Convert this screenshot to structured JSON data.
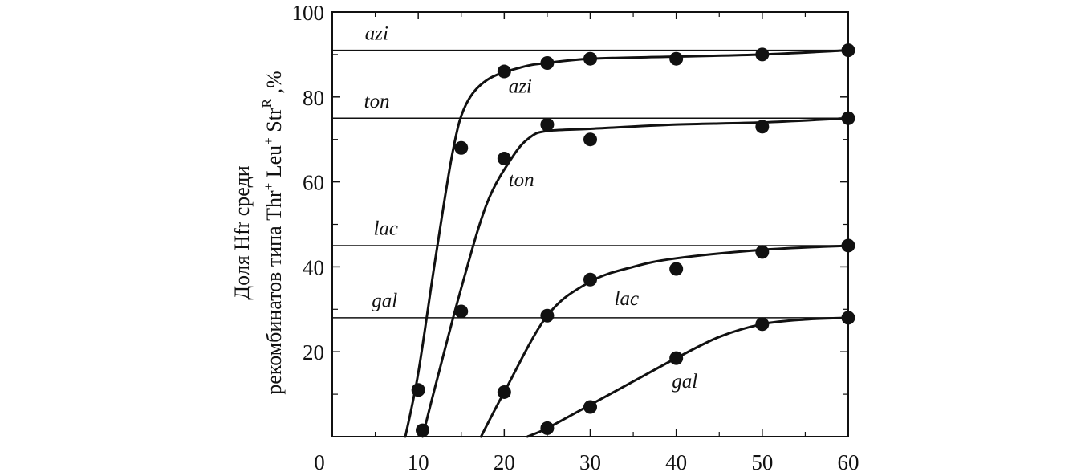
{
  "chart_data": {
    "type": "line",
    "title": "",
    "xlabel": "",
    "ylabel_lines": [
      "Доля Hfr среди",
      "рекомбинатов типа Thr⁺ Leu⁺ Str^R, %"
    ],
    "ylabel_parts": {
      "line1": "Доля Hfr среди",
      "line2_prefix": "рекомбинатов типа Thr",
      "plus1": "+",
      "leu": " Leu",
      "plus2": "+",
      "str": " Str",
      "R": "R",
      "suffix": " ,%"
    },
    "xlim": [
      0,
      60
    ],
    "ylim": [
      0,
      100
    ],
    "x_ticks": [
      0,
      10,
      20,
      30,
      40,
      50,
      60
    ],
    "y_ticks": [
      20,
      40,
      60,
      80,
      100
    ],
    "x_tick_labels": [
      "0",
      "10",
      "20",
      "30",
      "40",
      "50",
      "60"
    ],
    "y_tick_labels": [
      "20",
      "40",
      "60",
      "80",
      "100"
    ],
    "grid": false,
    "reference_lines": [
      {
        "name": "azi",
        "y": 91
      },
      {
        "name": "ton",
        "y": 75
      },
      {
        "name": "lac",
        "y": 45
      },
      {
        "name": "gal",
        "y": 28
      }
    ],
    "series": [
      {
        "name": "azi",
        "points": [
          [
            10,
            11
          ],
          [
            15,
            68
          ],
          [
            20,
            86
          ],
          [
            25,
            88
          ],
          [
            30,
            89
          ],
          [
            40,
            89
          ],
          [
            50,
            90
          ],
          [
            60,
            91
          ]
        ],
        "curve": [
          [
            8.5,
            0
          ],
          [
            10,
            15
          ],
          [
            12,
            42
          ],
          [
            14,
            67
          ],
          [
            15.5,
            78
          ],
          [
            18,
            84
          ],
          [
            22,
            87
          ],
          [
            25,
            88
          ],
          [
            30,
            89
          ],
          [
            40,
            89.5
          ],
          [
            50,
            90
          ],
          [
            60,
            91
          ]
        ]
      },
      {
        "name": "ton",
        "points": [
          [
            10.5,
            1.5
          ],
          [
            15,
            29.5
          ],
          [
            20,
            65.5
          ],
          [
            25,
            73.5
          ],
          [
            30,
            70
          ],
          [
            50,
            73
          ],
          [
            60,
            75
          ]
        ],
        "curve": [
          [
            10.5,
            0
          ],
          [
            12,
            12
          ],
          [
            15,
            35
          ],
          [
            18,
            55
          ],
          [
            21,
            66
          ],
          [
            23,
            70.5
          ],
          [
            25,
            72
          ],
          [
            30,
            72.5
          ],
          [
            40,
            73.5
          ],
          [
            50,
            74
          ],
          [
            60,
            75
          ]
        ]
      },
      {
        "name": "lac",
        "points": [
          [
            20,
            10.5
          ],
          [
            25,
            28.5
          ],
          [
            30,
            37
          ],
          [
            40,
            39.5
          ],
          [
            50,
            43.5
          ],
          [
            60,
            45
          ]
        ],
        "curve": [
          [
            17.3,
            0
          ],
          [
            20,
            10.5
          ],
          [
            25,
            28.5
          ],
          [
            30,
            36.5
          ],
          [
            35,
            40
          ],
          [
            40,
            42
          ],
          [
            50,
            44
          ],
          [
            60,
            45
          ]
        ]
      },
      {
        "name": "gal",
        "points": [
          [
            25,
            2
          ],
          [
            30,
            7
          ],
          [
            40,
            18.5
          ],
          [
            50,
            26.5
          ],
          [
            60,
            28
          ]
        ],
        "curve": [
          [
            22.7,
            0
          ],
          [
            25,
            2
          ],
          [
            30,
            7.5
          ],
          [
            35,
            13
          ],
          [
            40,
            18.5
          ],
          [
            45,
            23.5
          ],
          [
            50,
            26.5
          ],
          [
            55,
            27.6
          ],
          [
            60,
            28
          ]
        ]
      }
    ],
    "annotations": [
      {
        "text": "azi",
        "x": 20.5,
        "y": 81
      },
      {
        "text": "ton",
        "x": 20.5,
        "y": 59
      },
      {
        "text": "lac",
        "x": 32.8,
        "y": 31
      },
      {
        "text": "gal",
        "x": 39.5,
        "y": 11.5
      },
      {
        "text": "azi",
        "x": 3.8,
        "y": 93.5
      },
      {
        "text": "ton",
        "x": 3.7,
        "y": 77.5
      },
      {
        "text": "lac",
        "x": 4.8,
        "y": 47.5
      },
      {
        "text": "gal",
        "x": 4.6,
        "y": 30.5
      }
    ],
    "colors": {
      "ink": "#111111",
      "background": "#ffffff"
    }
  }
}
